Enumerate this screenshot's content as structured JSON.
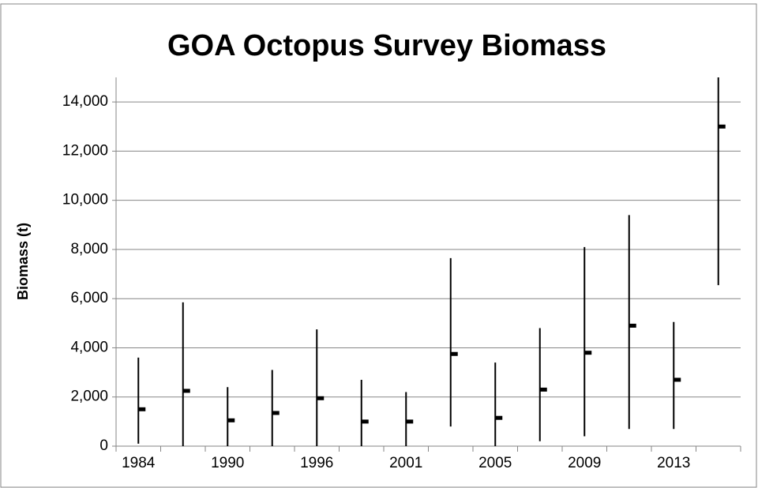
{
  "chart_data": {
    "type": "high-low-close",
    "title": "GOA Octopus Survey Biomass",
    "y_label": "Biomass (t)",
    "categories": [
      "1984",
      null,
      "1990",
      null,
      "1996",
      null,
      "2001",
      null,
      "2005",
      null,
      "2009",
      null,
      "2013",
      null
    ],
    "values": [
      1500,
      2250,
      1050,
      1350,
      1950,
      1000,
      1000,
      3750,
      1150,
      2300,
      3800,
      4900,
      2700,
      13000
    ],
    "high": [
      3600,
      5850,
      2400,
      3100,
      4750,
      2700,
      2200,
      7650,
      3400,
      4800,
      8100,
      9400,
      5050,
      15000
    ],
    "low": [
      100,
      0,
      0,
      0,
      0,
      0,
      0,
      800,
      0,
      200,
      400,
      700,
      700,
      6550
    ],
    "color": "#000000",
    "ylim": [
      0,
      15000
    ],
    "yticks": [
      0,
      {
        "value": 2000,
        "label": "2,000"
      },
      {
        "value": 4000,
        "label": "4,000"
      },
      {
        "value": 6000,
        "label": "6,000"
      },
      {
        "value": 8000,
        "label": "8,000"
      },
      {
        "value": 10000,
        "label": "10,000"
      },
      {
        "value": 12000,
        "label": "12,000"
      },
      {
        "value": 14000,
        "label": "14,000"
      }
    ],
    "grid": true
  }
}
